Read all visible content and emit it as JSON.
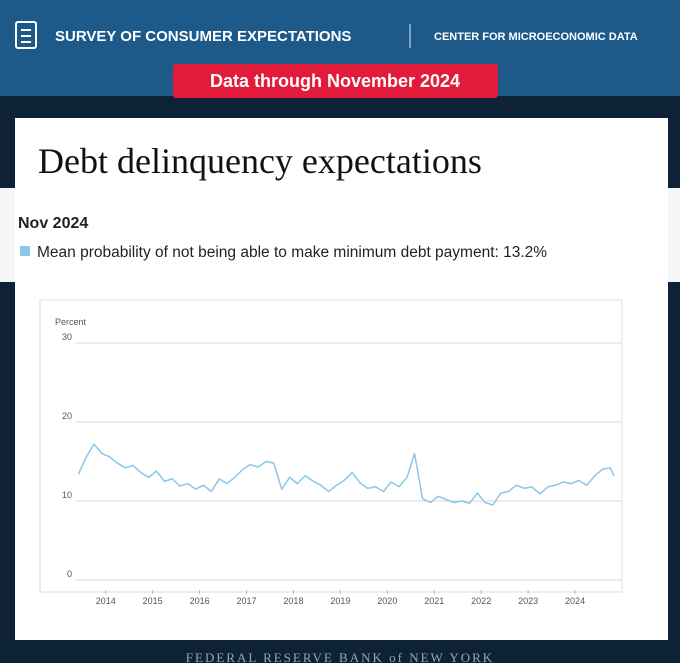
{
  "header": {
    "survey": "SURVEY OF CONSUMER EXPECTATIONS",
    "center": "CENTER FOR MICROECONOMIC DATA",
    "badge": "Data through November 2024",
    "footer": "FEDERAL RESERVE BANK of NEW YORK"
  },
  "chart_data": {
    "type": "line",
    "title": "Debt delinquency expectations",
    "y_label": "Percent",
    "tooltip": {
      "title": "Nov 2024",
      "text": "Mean probability of not being able to make minimum debt payment: 13.2%"
    },
    "color": "#8cc6e8",
    "x": [
      2013.42,
      2013.58,
      2013.75,
      2013.92,
      2014.08,
      2014.25,
      2014.42,
      2014.58,
      2014.75,
      2014.92,
      2015.08,
      2015.25,
      2015.42,
      2015.58,
      2015.75,
      2015.92,
      2016.08,
      2016.25,
      2016.42,
      2016.58,
      2016.75,
      2016.92,
      2017.08,
      2017.25,
      2017.42,
      2017.58,
      2017.75,
      2017.92,
      2018.08,
      2018.25,
      2018.42,
      2018.58,
      2018.75,
      2018.92,
      2019.08,
      2019.25,
      2019.42,
      2019.58,
      2019.75,
      2019.92,
      2020.08,
      2020.25,
      2020.42,
      2020.58,
      2020.75,
      2020.92,
      2021.08,
      2021.25,
      2021.42,
      2021.58,
      2021.75,
      2021.92,
      2022.08,
      2022.25,
      2022.42,
      2022.58,
      2022.75,
      2022.92,
      2023.08,
      2023.25,
      2023.42,
      2023.58,
      2023.75,
      2023.92,
      2024.08,
      2024.25,
      2024.42,
      2024.58,
      2024.75,
      2024.83
    ],
    "values": [
      13.4,
      15.5,
      17.2,
      16.0,
      15.6,
      14.8,
      14.2,
      14.5,
      13.6,
      13.0,
      13.8,
      12.5,
      12.8,
      11.9,
      12.2,
      11.5,
      12.0,
      11.2,
      12.8,
      12.2,
      13.0,
      14.0,
      14.6,
      14.3,
      15.0,
      14.8,
      11.5,
      13.0,
      12.2,
      13.2,
      12.5,
      12.0,
      11.2,
      12.0,
      12.6,
      13.6,
      12.3,
      11.6,
      11.8,
      11.2,
      12.4,
      11.8,
      13.0,
      16.0,
      10.3,
      9.8,
      10.6,
      10.2,
      9.8,
      10.0,
      9.7,
      11.0,
      9.8,
      9.5,
      11.0,
      11.2,
      12.0,
      11.6,
      11.8,
      10.9,
      11.8,
      12.0,
      12.4,
      12.2,
      12.6,
      12.0,
      13.2,
      14.0,
      14.2,
      13.2
    ],
    "xlim": [
      2012.6,
      2025.0
    ],
    "xticks": [
      2014,
      2015,
      2016,
      2017,
      2018,
      2019,
      2020,
      2021,
      2022,
      2023,
      2024
    ],
    "ylim": [
      0,
      30
    ],
    "yticks": [
      0,
      10,
      20,
      30
    ],
    "grid": true
  }
}
